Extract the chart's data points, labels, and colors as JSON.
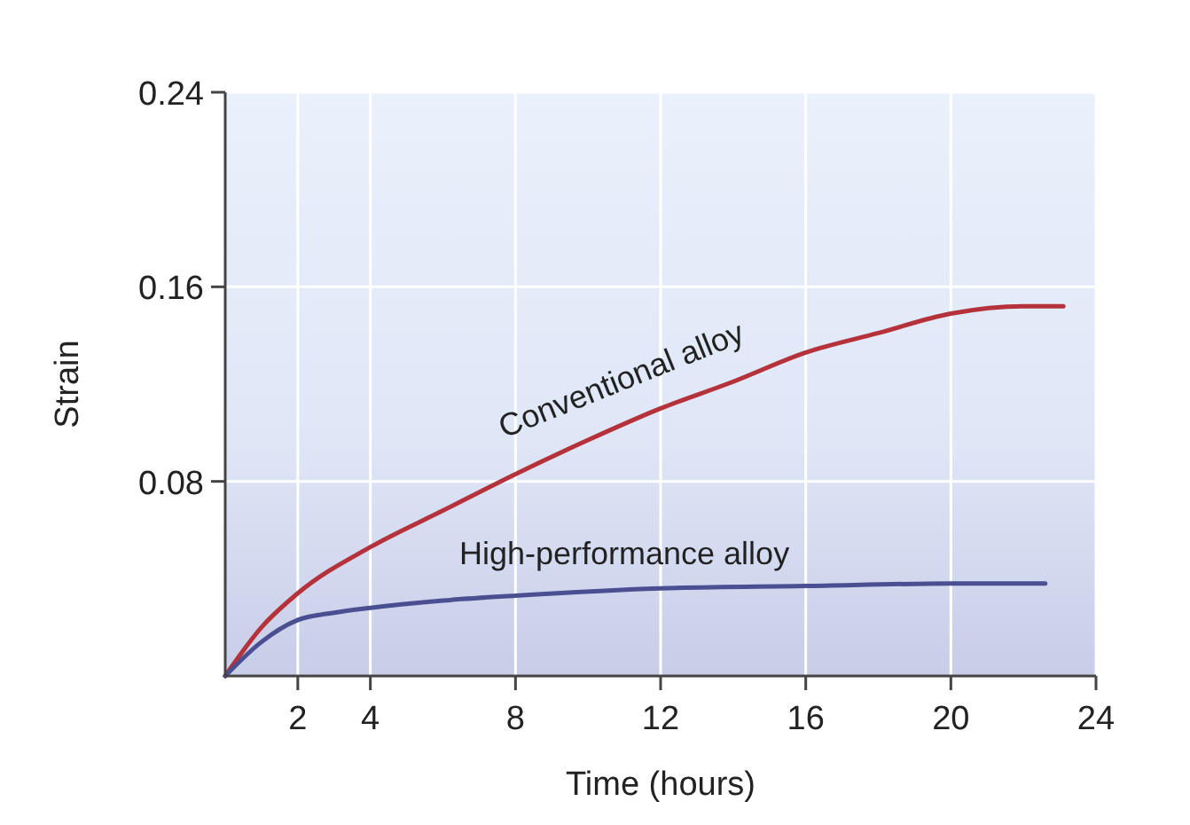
{
  "chart_data": {
    "type": "line",
    "xlabel": "Time (hours)",
    "ylabel": "Strain",
    "xlim": [
      0,
      24
    ],
    "xticks": [
      2,
      4,
      8,
      12,
      16,
      20,
      24
    ],
    "ylim": [
      0,
      0.24
    ],
    "yticks": [
      0.08,
      0.16,
      0.24
    ],
    "grid": true,
    "legend": false,
    "marker": "none",
    "line_style": "solid",
    "series": [
      {
        "name": "Conventional alloy",
        "color": "#b5323a",
        "x": [
          0,
          1,
          2,
          4,
          6,
          8,
          10,
          12,
          14,
          16,
          18,
          20,
          22,
          23.1
        ],
        "values": [
          0,
          0.02,
          0.034,
          0.053,
          0.068,
          0.083,
          0.097,
          0.11,
          0.121,
          0.133,
          0.141,
          0.149,
          0.152,
          0.152
        ]
      },
      {
        "name": "High-performance alloy",
        "color": "#4a4f91",
        "x": [
          0,
          1,
          2,
          3,
          4,
          6,
          8,
          12,
          16,
          20,
          22.6
        ],
        "values": [
          0,
          0.014,
          0.023,
          0.026,
          0.028,
          0.031,
          0.033,
          0.036,
          0.037,
          0.038,
          0.038
        ]
      }
    ]
  }
}
